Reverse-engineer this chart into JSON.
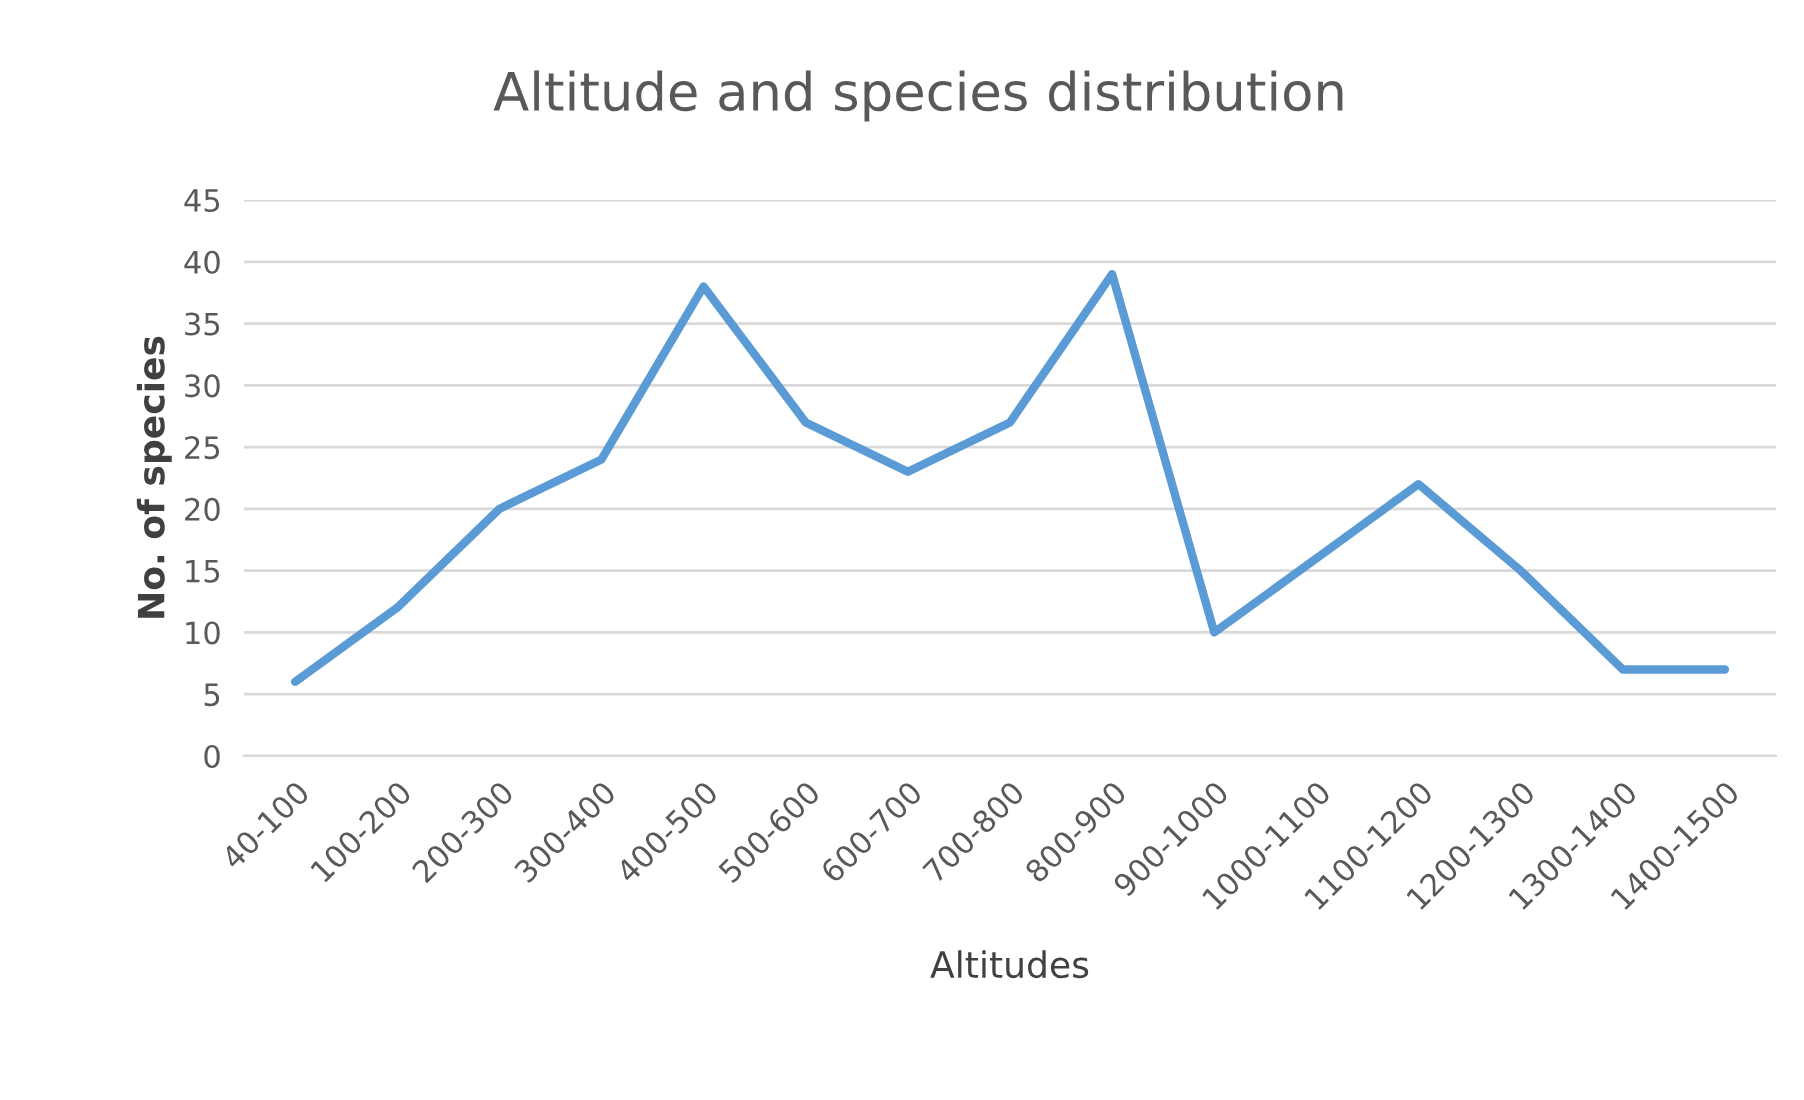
{
  "chart_data": {
    "type": "line",
    "title": "Altitude and species distribution",
    "xlabel": "Altitudes",
    "ylabel": "No. of species",
    "categories": [
      "40-100",
      "100-200",
      "200-300",
      "300-400",
      "400-500",
      "500-600",
      "600-700",
      "700-800",
      "800-900",
      "900-1000",
      "1000-1100",
      "1100-1200",
      "1200-1300",
      "1300-1400",
      "1400-1500"
    ],
    "series": [
      {
        "color": "#5b9bd5",
        "values": [
          6,
          12,
          20,
          24,
          38,
          27,
          23,
          27,
          39,
          10,
          16,
          22,
          15,
          7,
          7
        ]
      }
    ],
    "ylim": [
      0,
      45
    ],
    "yticks": [
      0,
      5,
      10,
      15,
      20,
      25,
      30,
      35,
      40,
      45
    ],
    "grid": "y",
    "legend": false,
    "marker": "none",
    "line_style": "solid"
  }
}
